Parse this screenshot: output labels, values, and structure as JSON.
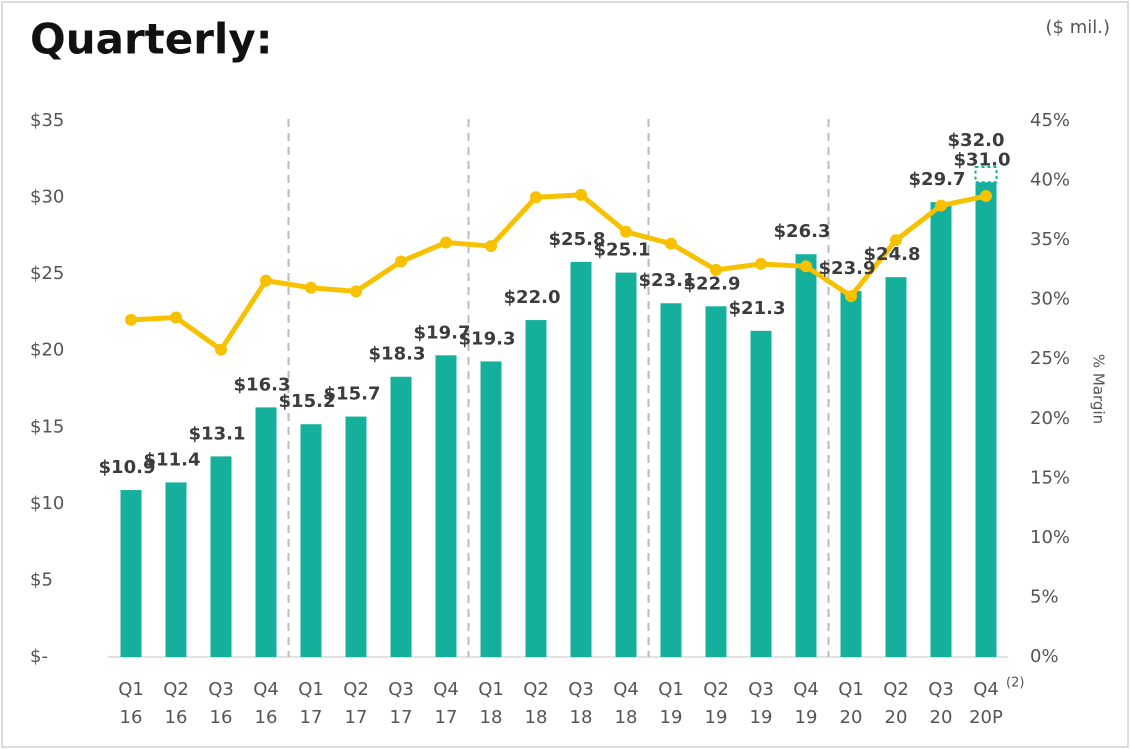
{
  "chart_data": {
    "type": "bar_line",
    "title": "Quarterly:",
    "unit_label": "($ mil.)",
    "y2_label": "% Margin",
    "footnote": "(2)",
    "categories": [
      [
        "Q1",
        "16"
      ],
      [
        "Q2",
        "16"
      ],
      [
        "Q3",
        "16"
      ],
      [
        "Q4",
        "16"
      ],
      [
        "Q1",
        "17"
      ],
      [
        "Q2",
        "17"
      ],
      [
        "Q3",
        "17"
      ],
      [
        "Q4",
        "17"
      ],
      [
        "Q1",
        "18"
      ],
      [
        "Q2",
        "18"
      ],
      [
        "Q3",
        "18"
      ],
      [
        "Q4",
        "18"
      ],
      [
        "Q1",
        "19"
      ],
      [
        "Q2",
        "19"
      ],
      [
        "Q3",
        "19"
      ],
      [
        "Q4",
        "19"
      ],
      [
        "Q1",
        "20"
      ],
      [
        "Q2",
        "20"
      ],
      [
        "Q3",
        "20"
      ],
      [
        "Q4",
        "20P"
      ]
    ],
    "series": [
      {
        "type": "bar",
        "color": "#14b09c",
        "values": [
          10.9,
          11.4,
          13.1,
          16.3,
          15.2,
          15.7,
          18.3,
          19.7,
          19.3,
          22.0,
          25.8,
          25.1,
          23.1,
          22.9,
          21.3,
          26.3,
          23.9,
          24.8,
          29.7,
          31.0
        ],
        "value_labels": [
          "$10.9",
          "$11.4",
          "$13.1",
          "$16.3",
          "$15.2",
          "$15.7",
          "$18.3",
          "$19.7",
          "$19.3",
          "$22.0",
          "$25.8",
          "$25.1",
          "$23.1",
          "$22.9",
          "$21.3",
          "$26.3",
          "$23.9",
          "$24.8",
          "$29.7",
          "$31.0"
        ]
      },
      {
        "type": "line",
        "color": "#f8c100",
        "axis": "y2",
        "values": [
          28.3,
          28.5,
          25.8,
          31.6,
          31.0,
          30.7,
          33.2,
          34.8,
          34.5,
          38.6,
          38.8,
          35.7,
          34.7,
          32.5,
          33.0,
          32.8,
          30.3,
          35.0,
          37.9,
          38.7
        ]
      }
    ],
    "projection": {
      "value": 32.0,
      "label": "$32.0"
    },
    "ylim": [
      0,
      35
    ],
    "yticks": [
      {
        "value": 0,
        "label": "$-"
      },
      {
        "value": 5,
        "label": "$5"
      },
      {
        "value": 10,
        "label": "$10"
      },
      {
        "value": 15,
        "label": "$15"
      },
      {
        "value": 20,
        "label": "$20"
      },
      {
        "value": 25,
        "label": "$25"
      },
      {
        "value": 30,
        "label": "$30"
      },
      {
        "value": 35,
        "label": "$35"
      }
    ],
    "y2lim": [
      0,
      45
    ],
    "y2ticks": [
      {
        "value": 0,
        "label": "0%"
      },
      {
        "value": 5,
        "label": "5%"
      },
      {
        "value": 10,
        "label": "10%"
      },
      {
        "value": 15,
        "label": "15%"
      },
      {
        "value": 20,
        "label": "20%"
      },
      {
        "value": 25,
        "label": "25%"
      },
      {
        "value": 30,
        "label": "30%"
      },
      {
        "value": 35,
        "label": "35%"
      },
      {
        "value": 40,
        "label": "40%"
      },
      {
        "value": 45,
        "label": "45%"
      }
    ]
  }
}
